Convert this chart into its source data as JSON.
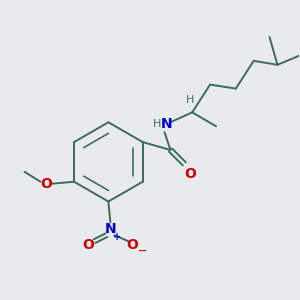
{
  "bg_color": "#e8eaed",
  "bond_color": "#3d6b5e",
  "nitrogen_color": "#0000cc",
  "oxygen_color": "#cc0000",
  "bond_width": 1.4,
  "figsize": [
    3.0,
    3.0
  ],
  "dpi": 100,
  "xlim": [
    0,
    300
  ],
  "ylim": [
    0,
    300
  ]
}
